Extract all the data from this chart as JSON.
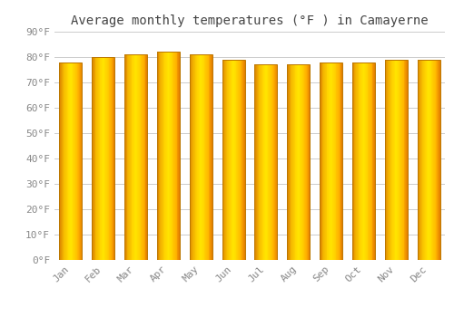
{
  "title": "Average monthly temperatures (°F ) in Camayerne",
  "months": [
    "Jan",
    "Feb",
    "Mar",
    "Apr",
    "May",
    "Jun",
    "Jul",
    "Aug",
    "Sep",
    "Oct",
    "Nov",
    "Dec"
  ],
  "values": [
    78,
    80,
    81,
    82,
    81,
    79,
    77,
    77,
    78,
    78,
    79,
    79
  ],
  "ylim": [
    0,
    90
  ],
  "yticks": [
    0,
    10,
    20,
    30,
    40,
    50,
    60,
    70,
    80,
    90
  ],
  "ytick_labels": [
    "0°F",
    "10°F",
    "20°F",
    "30°F",
    "40°F",
    "50°F",
    "60°F",
    "70°F",
    "80°F",
    "90°F"
  ],
  "bar_color_top": "#FFA500",
  "bar_color_bottom": "#FFD000",
  "bar_edge_color": "#BB7700",
  "background_color": "#FFFFFF",
  "plot_bg_color": "#FFFFFF",
  "grid_color": "#CCCCCC",
  "title_color": "#444444",
  "tick_color": "#888888",
  "title_fontsize": 10,
  "tick_fontsize": 8,
  "bar_width": 0.7,
  "n_grad": 60
}
